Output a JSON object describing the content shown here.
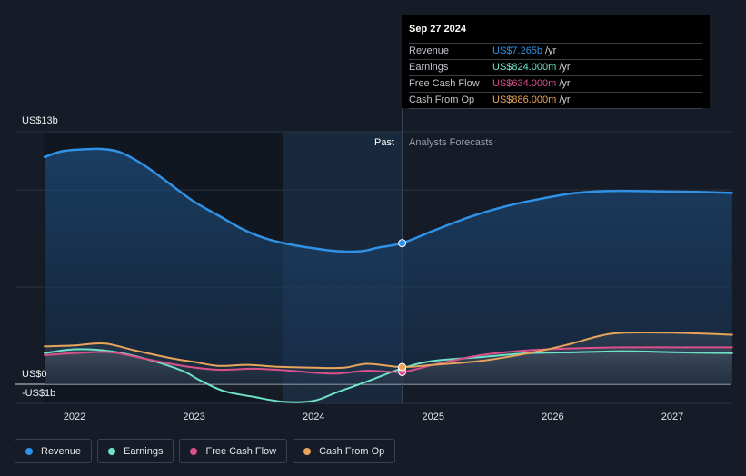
{
  "chart_data": {
    "type": "line",
    "x_axis": {
      "tick_labels": [
        "2022",
        "2023",
        "2024",
        "2025",
        "2026",
        "2027"
      ],
      "range": [
        2021.75,
        2027.5
      ]
    },
    "y_axis": {
      "top_label": "US$13b",
      "zero_label": "US$0",
      "bottom_label": "-US$1b",
      "range": [
        -1,
        13
      ],
      "unit": "US$b"
    },
    "regions": {
      "past_label": "Past",
      "forecast_label": "Analysts Forecasts",
      "divider_x": 2024.74,
      "shaded_past_start": 2023.74
    },
    "series": [
      {
        "name": "Revenue",
        "color": "#2f92e6",
        "points": [
          [
            2021.75,
            11.7
          ],
          [
            2021.9,
            12.0
          ],
          [
            2022.1,
            12.1
          ],
          [
            2022.25,
            12.1
          ],
          [
            2022.4,
            11.9
          ],
          [
            2022.6,
            11.2
          ],
          [
            2022.8,
            10.3
          ],
          [
            2023.0,
            9.4
          ],
          [
            2023.2,
            8.7
          ],
          [
            2023.4,
            8.0
          ],
          [
            2023.6,
            7.5
          ],
          [
            2023.8,
            7.2
          ],
          [
            2024.0,
            7.0
          ],
          [
            2024.2,
            6.85
          ],
          [
            2024.4,
            6.85
          ],
          [
            2024.55,
            7.05
          ],
          [
            2024.74,
            7.265
          ],
          [
            2025.0,
            7.9
          ],
          [
            2025.3,
            8.6
          ],
          [
            2025.6,
            9.15
          ],
          [
            2025.9,
            9.55
          ],
          [
            2026.2,
            9.85
          ],
          [
            2026.5,
            9.95
          ],
          [
            2026.9,
            9.93
          ],
          [
            2027.2,
            9.9
          ],
          [
            2027.5,
            9.85
          ]
        ]
      },
      {
        "name": "Earnings",
        "color": "#6fe3c8",
        "points": [
          [
            2021.75,
            1.6
          ],
          [
            2022.0,
            1.8
          ],
          [
            2022.3,
            1.7
          ],
          [
            2022.6,
            1.3
          ],
          [
            2022.9,
            0.7
          ],
          [
            2023.05,
            0.2
          ],
          [
            2023.25,
            -0.35
          ],
          [
            2023.5,
            -0.65
          ],
          [
            2023.75,
            -0.9
          ],
          [
            2024.0,
            -0.85
          ],
          [
            2024.2,
            -0.4
          ],
          [
            2024.45,
            0.15
          ],
          [
            2024.74,
            0.824
          ],
          [
            2025.0,
            1.2
          ],
          [
            2025.4,
            1.4
          ],
          [
            2025.8,
            1.6
          ],
          [
            2026.2,
            1.65
          ],
          [
            2026.6,
            1.7
          ],
          [
            2027.0,
            1.65
          ],
          [
            2027.5,
            1.6
          ]
        ]
      },
      {
        "name": "Free Cash Flow",
        "color": "#d9508a",
        "points": [
          [
            2021.75,
            1.5
          ],
          [
            2022.0,
            1.6
          ],
          [
            2022.3,
            1.65
          ],
          [
            2022.6,
            1.3
          ],
          [
            2022.9,
            0.95
          ],
          [
            2023.2,
            0.75
          ],
          [
            2023.5,
            0.8
          ],
          [
            2023.8,
            0.7
          ],
          [
            2024.0,
            0.6
          ],
          [
            2024.2,
            0.55
          ],
          [
            2024.45,
            0.7
          ],
          [
            2024.74,
            0.634
          ],
          [
            2025.0,
            1.0
          ],
          [
            2025.4,
            1.5
          ],
          [
            2025.8,
            1.75
          ],
          [
            2026.2,
            1.85
          ],
          [
            2026.6,
            1.9
          ],
          [
            2027.0,
            1.9
          ],
          [
            2027.5,
            1.9
          ]
        ]
      },
      {
        "name": "Cash From Op",
        "color": "#e8a55a",
        "points": [
          [
            2021.75,
            1.95
          ],
          [
            2022.0,
            2.0
          ],
          [
            2022.25,
            2.1
          ],
          [
            2022.5,
            1.75
          ],
          [
            2022.8,
            1.35
          ],
          [
            2023.0,
            1.15
          ],
          [
            2023.2,
            0.95
          ],
          [
            2023.45,
            1.0
          ],
          [
            2023.7,
            0.9
          ],
          [
            2024.0,
            0.85
          ],
          [
            2024.25,
            0.85
          ],
          [
            2024.45,
            1.05
          ],
          [
            2024.74,
            0.886
          ],
          [
            2025.0,
            1.0
          ],
          [
            2025.4,
            1.2
          ],
          [
            2025.8,
            1.6
          ],
          [
            2026.1,
            2.0
          ],
          [
            2026.4,
            2.5
          ],
          [
            2026.6,
            2.65
          ],
          [
            2027.0,
            2.65
          ],
          [
            2027.5,
            2.55
          ]
        ]
      }
    ],
    "legend_position": "bottom-left",
    "grid": "horizontal"
  },
  "tooltip": {
    "date": "Sep 27 2024",
    "rows": [
      {
        "name": "Revenue",
        "value": "US$7.265b",
        "unit": "/yr",
        "color": "#2f92e6"
      },
      {
        "name": "Earnings",
        "value": "US$824.000m",
        "unit": "/yr",
        "color": "#6fe3c8"
      },
      {
        "name": "Free Cash Flow",
        "value": "US$634.000m",
        "unit": "/yr",
        "color": "#d9508a"
      },
      {
        "name": "Cash From Op",
        "value": "US$886.000m",
        "unit": "/yr",
        "color": "#e8a55a"
      }
    ]
  },
  "legend": [
    {
      "label": "Revenue",
      "color": "#2f92e6"
    },
    {
      "label": "Earnings",
      "color": "#6fe3c8"
    },
    {
      "label": "Free Cash Flow",
      "color": "#d9508a"
    },
    {
      "label": "Cash From Op",
      "color": "#e8a55a"
    }
  ]
}
